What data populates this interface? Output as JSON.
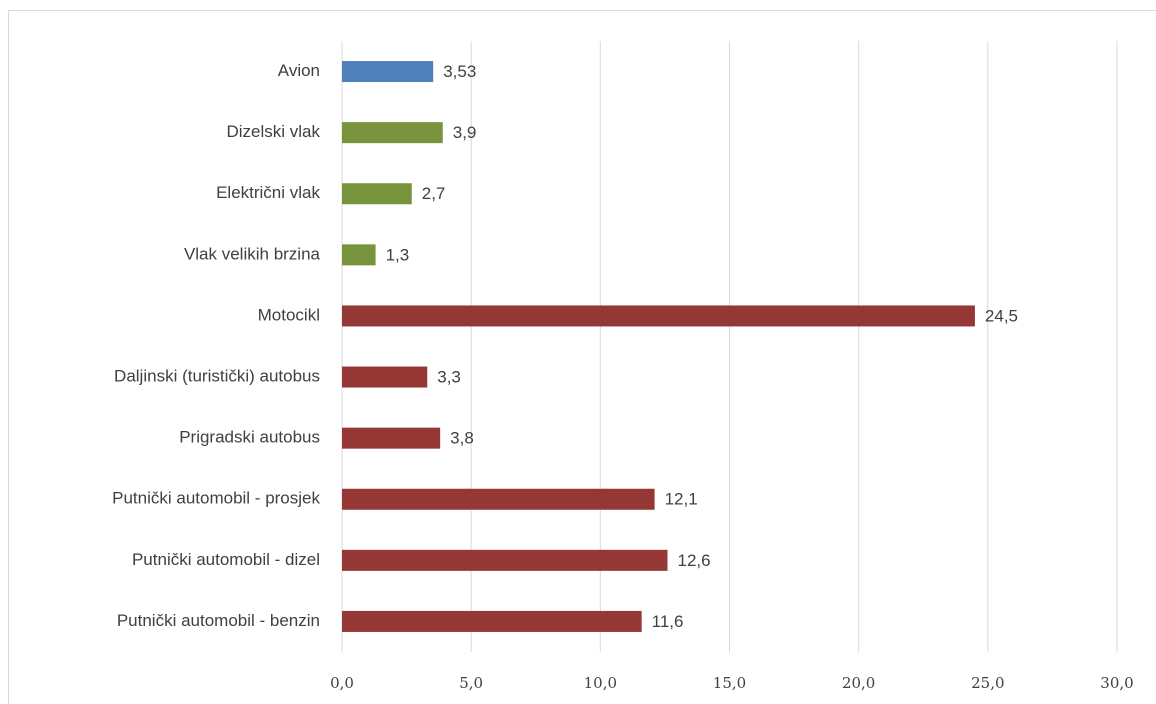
{
  "chart_data": {
    "type": "bar",
    "orientation": "horizontal",
    "categories": [
      "Avion",
      "Dizelski vlak",
      "Električni vlak",
      "Vlak velikih brzina",
      "Motocikl",
      "Daljinski (turistički) autobus",
      "Prigradski autobus",
      "Putnički automobil - prosjek",
      "Putnički automobil - dizel",
      "Putnički automobil - benzin"
    ],
    "values": [
      3.53,
      3.9,
      2.7,
      1.3,
      24.5,
      3.3,
      3.8,
      12.1,
      12.6,
      11.6
    ],
    "value_labels": [
      "3,53",
      "3,9",
      "2,7",
      "1,3",
      "24,5",
      "3,3",
      "3,8",
      "12,1",
      "12,6",
      "11,6"
    ],
    "colors": [
      "#4f81bd",
      "#77933c",
      "#77933c",
      "#77933c",
      "#953735",
      "#953735",
      "#953735",
      "#953735",
      "#953735",
      "#953735"
    ],
    "xlim": [
      0,
      30
    ],
    "xticks": [
      {
        "value": 0,
        "label": "0,0"
      },
      {
        "value": 5,
        "label": "5,0"
      },
      {
        "value": 10,
        "label": "10,0"
      },
      {
        "value": 15,
        "label": "15,0"
      },
      {
        "value": 20,
        "label": "20,0"
      },
      {
        "value": 25,
        "label": "25,0"
      },
      {
        "value": 30,
        "label": "30,0"
      }
    ],
    "grid": true
  }
}
